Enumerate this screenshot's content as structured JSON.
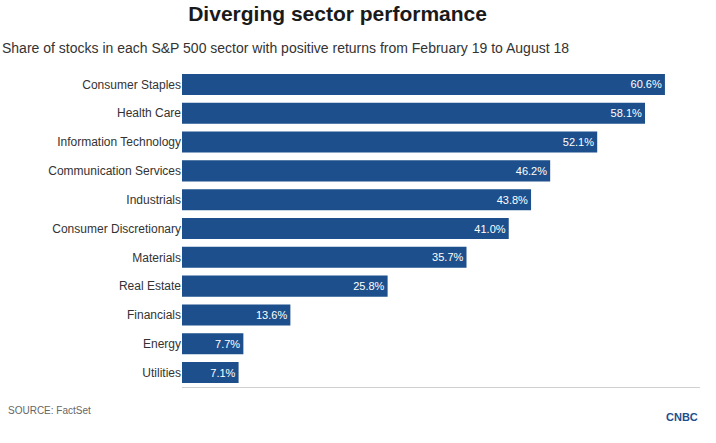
{
  "chart_data": {
    "type": "bar",
    "title": "Diverging sector performance",
    "subtitle": "Share of stocks in each S&P 500 sector with positive returns from February 19 to August 18",
    "categories": [
      "Consumer Staples",
      "Health Care",
      "Information Technology",
      "Communication Services",
      "Industrials",
      "Consumer Discretionary",
      "Materials",
      "Real Estate",
      "Financials",
      "Energy",
      "Utilities"
    ],
    "values": [
      60.6,
      58.1,
      52.1,
      46.2,
      43.8,
      41.0,
      35.7,
      25.8,
      13.6,
      7.7,
      7.1
    ],
    "value_labels": [
      "60.6%",
      "58.1%",
      "52.1%",
      "46.2%",
      "43.8%",
      "41.0%",
      "35.7%",
      "25.8%",
      "13.6%",
      "7.7%",
      "7.1%"
    ],
    "color": "#1d4f8c",
    "orientation": "horizontal",
    "xlim": [
      0,
      65
    ],
    "grid": false,
    "data_labels": true,
    "tick_labels": "y",
    "source": "SOURCE: FactSet",
    "logo": "CNBC"
  }
}
